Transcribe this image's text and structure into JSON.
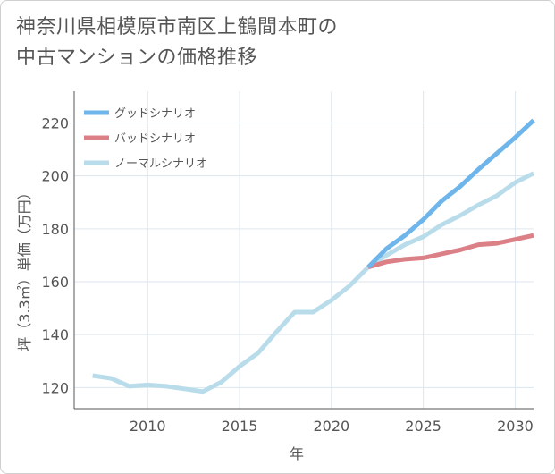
{
  "page": {
    "title_lines": [
      "神奈川県相模原市南区上鶴間本町の",
      "中古マンションの価格推移"
    ]
  },
  "colors": {
    "good": "#6db5ea",
    "bad": "#dc8088",
    "normal": "#b9dceb",
    "grid": "#dde6ee",
    "axis": "#555555",
    "text": "#555555"
  },
  "chart_data": {
    "type": "line",
    "title": "神奈川県相模原市南区上鶴間本町の中古マンションの価格推移",
    "xlabel": "年",
    "ylabel": "坪（3.3㎡）単価（万円）",
    "xlim": [
      2006,
      2031
    ],
    "ylim": [
      112,
      232
    ],
    "x_ticks": [
      2010,
      2015,
      2020,
      2025,
      2030
    ],
    "y_ticks": [
      120,
      140,
      160,
      180,
      200,
      220
    ],
    "grid": true,
    "legend_position": "top-left",
    "series": [
      {
        "name": "グッドシナリオ",
        "key": "good",
        "x": [
          2022,
          2023,
          2024,
          2025,
          2026,
          2027,
          2028,
          2029,
          2030,
          2031
        ],
        "values": [
          165.5,
          172.5,
          177.5,
          183.5,
          190.5,
          196,
          202.5,
          208.5,
          214.5,
          221
        ]
      },
      {
        "name": "バッドシナリオ",
        "key": "bad",
        "x": [
          2022,
          2023,
          2024,
          2025,
          2026,
          2027,
          2028,
          2029,
          2030,
          2031
        ],
        "values": [
          165.5,
          167.5,
          168.5,
          169,
          170.5,
          172,
          174,
          174.5,
          176,
          177.5
        ]
      },
      {
        "name": "ノーマルシナリオ",
        "key": "normal",
        "x": [
          2007,
          2008,
          2009,
          2010,
          2011,
          2012,
          2013,
          2014,
          2015,
          2016,
          2017,
          2018,
          2019,
          2020,
          2021,
          2022,
          2023,
          2024,
          2025,
          2026,
          2027,
          2028,
          2029,
          2030,
          2031
        ],
        "values": [
          124.5,
          123.5,
          120.5,
          121,
          120.5,
          119.5,
          118.5,
          122,
          128,
          133,
          141,
          148.5,
          148.5,
          153,
          158.5,
          165.5,
          170,
          174,
          177,
          181.5,
          185,
          189,
          192.5,
          197.5,
          201
        ]
      }
    ]
  }
}
